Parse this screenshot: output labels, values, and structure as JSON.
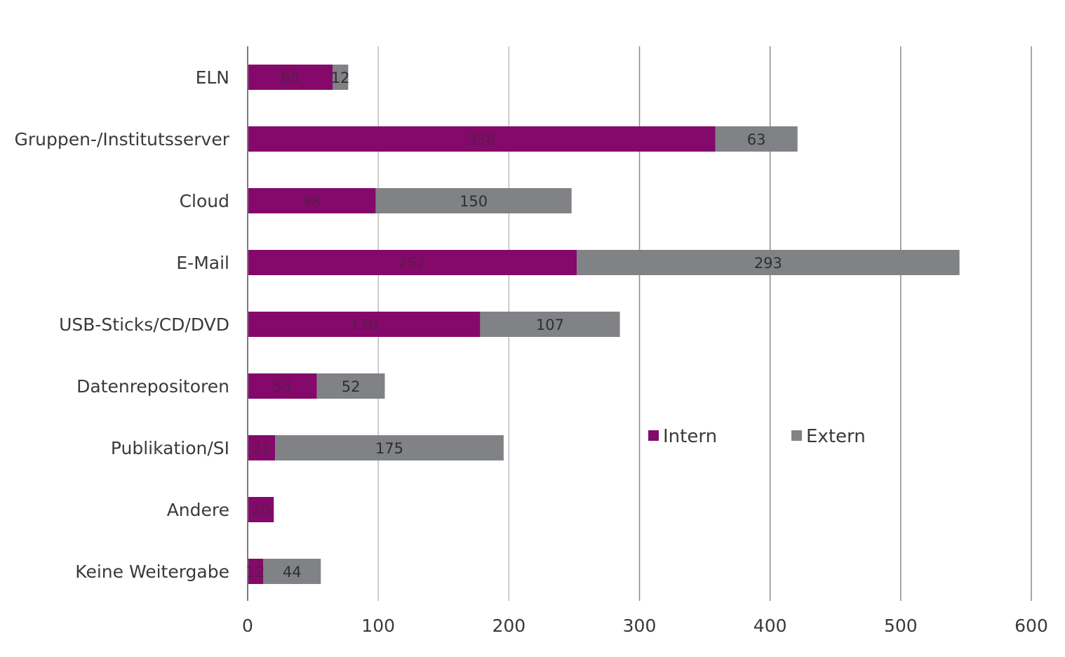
{
  "chart_data": {
    "type": "bar",
    "orientation": "horizontal",
    "stacked": true,
    "categories": [
      "ELN",
      "Gruppen-/Institutsserver",
      "Cloud",
      "E-Mail",
      "USB-Sticks/CD/DVD",
      "Datenrepositoren",
      "Publikation/SI",
      "Andere",
      "Keine Weitergabe"
    ],
    "series": [
      {
        "name": "Intern",
        "color": "#84096a",
        "values": [
          65,
          358,
          98,
          252,
          178,
          53,
          21,
          20,
          12
        ]
      },
      {
        "name": "Extern",
        "color": "#808285",
        "values": [
          12,
          63,
          150,
          293,
          107,
          52,
          175,
          0,
          44
        ]
      }
    ],
    "xlim": [
      0,
      600
    ],
    "xticks": [
      0,
      100,
      200,
      300,
      400,
      500,
      600
    ],
    "grid": true,
    "legend": {
      "position": "right-middle",
      "entries": [
        "Intern",
        "Extern"
      ]
    },
    "title": "",
    "xlabel": "",
    "ylabel": ""
  }
}
